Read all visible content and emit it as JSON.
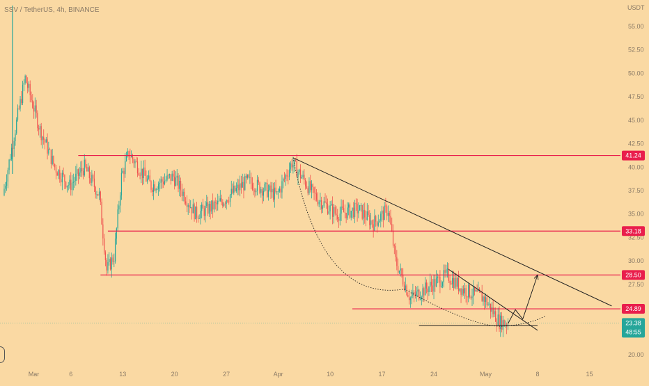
{
  "header": {
    "symbol_title": "SSV / TetherUS, 4h, BINANCE"
  },
  "price_axis": {
    "currency": "USDT",
    "ticks": [
      "55.00",
      "52.50",
      "50.00",
      "47.50",
      "45.00",
      "42.50",
      "40.00",
      "37.50",
      "35.00",
      "32.50",
      "30.00",
      "27.50",
      "25.00",
      "22.50",
      "20.00"
    ]
  },
  "time_axis": {
    "labels": [
      "Mar",
      "6",
      "13",
      "20",
      "27",
      "Apr",
      "10",
      "17",
      "24",
      "May",
      "8",
      "15"
    ]
  },
  "price_labels": [
    {
      "text": "41.24",
      "color": "#e91e4c"
    },
    {
      "text": "33.18",
      "color": "#e91e4c"
    },
    {
      "text": "28.50",
      "color": "#e91e4c"
    },
    {
      "text": "24.89",
      "color": "#e91e4c"
    }
  ],
  "current_price": {
    "value": "23.38",
    "countdown": "48:55",
    "color": "#26a69a"
  },
  "colors": {
    "background": "#fad9a3",
    "up_candle": "#26a69a",
    "down_candle": "#ef5350",
    "level_line": "#e91e4c",
    "trendline": "#222222"
  },
  "chart_data": {
    "type": "candlestick",
    "title": "SSV / TetherUS, 4h, BINANCE",
    "y_unit": "USDT",
    "ylim": [
      20.0,
      55.0
    ],
    "x_range": [
      "2023-02-25",
      "2023-05-19"
    ],
    "horizontal_levels": [
      41.24,
      33.18,
      28.5,
      24.89
    ],
    "current_price": 23.38,
    "price_path": [
      {
        "date": "2023-02-25",
        "price": 37.0
      },
      {
        "date": "2023-02-27",
        "price": 45.5
      },
      {
        "date": "2023-02-28",
        "price": 49.5
      },
      {
        "date": "2023-03-02",
        "price": 44.0
      },
      {
        "date": "2023-03-04",
        "price": 40.0
      },
      {
        "date": "2023-03-06",
        "price": 38.0
      },
      {
        "date": "2023-03-08",
        "price": 40.0
      },
      {
        "date": "2023-03-10",
        "price": 37.0
      },
      {
        "date": "2023-03-11",
        "price": 29.0
      },
      {
        "date": "2023-03-12",
        "price": 30.5
      },
      {
        "date": "2023-03-13",
        "price": 39.0
      },
      {
        "date": "2023-03-14",
        "price": 41.5
      },
      {
        "date": "2023-03-17",
        "price": 38.0
      },
      {
        "date": "2023-03-20",
        "price": 39.0
      },
      {
        "date": "2023-03-23",
        "price": 35.0
      },
      {
        "date": "2023-03-26",
        "price": 36.0
      },
      {
        "date": "2023-03-30",
        "price": 38.5
      },
      {
        "date": "2023-04-03",
        "price": 37.0
      },
      {
        "date": "2023-04-05",
        "price": 40.5
      },
      {
        "date": "2023-04-08",
        "price": 37.0
      },
      {
        "date": "2023-04-11",
        "price": 35.0
      },
      {
        "date": "2023-04-14",
        "price": 35.5
      },
      {
        "date": "2023-04-16",
        "price": 34.0
      },
      {
        "date": "2023-04-18",
        "price": 35.5
      },
      {
        "date": "2023-04-19",
        "price": 30.0
      },
      {
        "date": "2023-04-21",
        "price": 26.0
      },
      {
        "date": "2023-04-23",
        "price": 27.0
      },
      {
        "date": "2023-04-26",
        "price": 28.5
      },
      {
        "date": "2023-04-28",
        "price": 27.0
      },
      {
        "date": "2023-05-01",
        "price": 26.0
      },
      {
        "date": "2023-05-03",
        "price": 23.5
      },
      {
        "date": "2023-05-04",
        "price": 23.38
      }
    ],
    "trendlines": [
      {
        "style": "solid",
        "from": {
          "date": "2023-04-05",
          "price": 41.0
        },
        "to": {
          "date": "2023-05-18",
          "price": 25.2
        }
      },
      {
        "style": "solid",
        "from": {
          "date": "2023-04-26",
          "price": 29.1
        },
        "to": {
          "date": "2023-05-08",
          "price": 22.6
        }
      },
      {
        "style": "solid",
        "from": {
          "date": "2023-04-22",
          "price": 23.1
        },
        "to": {
          "date": "2023-05-08",
          "price": 23.1
        }
      },
      {
        "style": "projection",
        "points": [
          {
            "date": "2023-05-04",
            "price": 23.3
          },
          {
            "date": "2023-05-05",
            "price": 24.8
          },
          {
            "date": "2023-05-06",
            "price": 23.8
          },
          {
            "date": "2023-05-08",
            "price": 28.5
          }
        ]
      }
    ],
    "curves": [
      {
        "style": "dotted",
        "points": [
          {
            "date": "2023-04-05",
            "price": 41.0
          },
          {
            "date": "2023-04-20",
            "price": 27.0
          },
          {
            "date": "2023-05-04",
            "price": 23.1
          },
          {
            "date": "2023-05-09",
            "price": 24.1
          }
        ]
      }
    ]
  }
}
